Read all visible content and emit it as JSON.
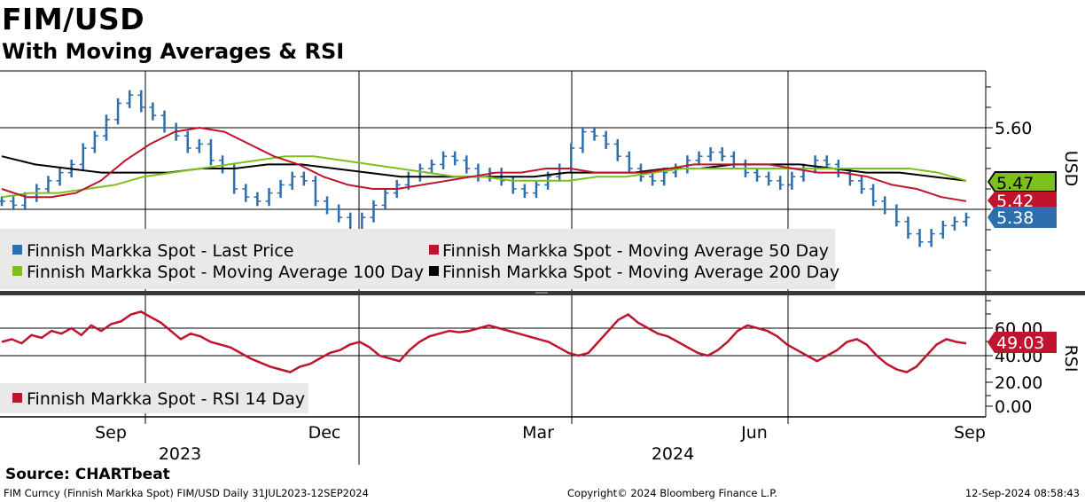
{
  "header": {
    "title": "FIM/USD",
    "subtitle": "With Moving Averages & RSI"
  },
  "footer": {
    "source": "Source: CHARTbeat",
    "ticker_info": "FIM Curncy (Finnish Markka Spot) FIM/USD  Daily 31JUL2023-12SEP2024",
    "copyright": "Copyright© 2024 Bloomberg Finance L.P.",
    "timestamp": "12-Sep-2024 08:58:43"
  },
  "colors": {
    "price": "#2e6eac",
    "ma50": "#c0142e",
    "ma100": "#7cc11a",
    "ma200": "#000000",
    "rsi": "#c0142e",
    "legend_bg": "#e9e9e9"
  },
  "chart_data": [
    {
      "type": "line",
      "title": "FIM/USD",
      "subtitle": "With Moving Averages & RSI",
      "x_tick_labels": [
        "Sep",
        "Dec",
        "Mar",
        "Jun",
        "Sep"
      ],
      "year_labels": [
        "2023",
        "2024"
      ],
      "y_tick_labels": [
        "5.60"
      ],
      "ylabel": "USD",
      "ylim": [
        5.18,
        5.75
      ],
      "grid": true,
      "legend_position": "bottom-left",
      "last_values": {
        "ma100": "5.47",
        "ma50": "5.42",
        "price": "5.38"
      },
      "series": [
        {
          "name": "Finnish Markka Spot - Last Price",
          "style": "ohlc-bars",
          "values": [
            5.42,
            5.41,
            5.43,
            5.45,
            5.47,
            5.49,
            5.51,
            5.55,
            5.58,
            5.62,
            5.66,
            5.68,
            5.65,
            5.63,
            5.6,
            5.58,
            5.55,
            5.56,
            5.52,
            5.5,
            5.45,
            5.43,
            5.42,
            5.44,
            5.46,
            5.48,
            5.47,
            5.42,
            5.4,
            5.38,
            5.35,
            5.38,
            5.41,
            5.44,
            5.46,
            5.48,
            5.5,
            5.51,
            5.53,
            5.52,
            5.5,
            5.48,
            5.49,
            5.47,
            5.45,
            5.44,
            5.46,
            5.48,
            5.5,
            5.55,
            5.59,
            5.58,
            5.56,
            5.53,
            5.5,
            5.48,
            5.47,
            5.49,
            5.5,
            5.52,
            5.53,
            5.54,
            5.53,
            5.51,
            5.49,
            5.48,
            5.47,
            5.46,
            5.48,
            5.5,
            5.52,
            5.51,
            5.49,
            5.47,
            5.45,
            5.42,
            5.4,
            5.37,
            5.34,
            5.32,
            5.34,
            5.36,
            5.37,
            5.38
          ]
        },
        {
          "name": "Finnish Markka Spot - Moving Average 50 Day",
          "values": [
            5.45,
            5.43,
            5.43,
            5.44,
            5.47,
            5.52,
            5.56,
            5.59,
            5.6,
            5.59,
            5.56,
            5.53,
            5.51,
            5.48,
            5.46,
            5.45,
            5.45,
            5.46,
            5.47,
            5.48,
            5.49,
            5.49,
            5.5,
            5.5,
            5.49,
            5.49,
            5.49,
            5.5,
            5.51,
            5.51,
            5.51,
            5.51,
            5.5,
            5.49,
            5.49,
            5.48,
            5.46,
            5.45,
            5.43,
            5.42
          ]
        },
        {
          "name": "Finnish Markka Spot - Moving Average 100 Day",
          "values": [
            5.43,
            5.44,
            5.44,
            5.45,
            5.46,
            5.48,
            5.49,
            5.5,
            5.51,
            5.52,
            5.53,
            5.53,
            5.52,
            5.51,
            5.5,
            5.49,
            5.48,
            5.48,
            5.47,
            5.47,
            5.47,
            5.48,
            5.48,
            5.49,
            5.5,
            5.5,
            5.5,
            5.5,
            5.5,
            5.5,
            5.5,
            5.5,
            5.5,
            5.49,
            5.47
          ]
        },
        {
          "name": "Finnish Markka Spot - Moving Average 200 Day",
          "values": [
            5.53,
            5.51,
            5.5,
            5.49,
            5.49,
            5.49,
            5.5,
            5.5,
            5.51,
            5.51,
            5.5,
            5.49,
            5.48,
            5.48,
            5.48,
            5.48,
            5.48,
            5.49,
            5.49,
            5.49,
            5.5,
            5.5,
            5.51,
            5.51,
            5.51,
            5.5,
            5.49,
            5.49,
            5.48,
            5.47
          ]
        }
      ]
    },
    {
      "type": "line",
      "ylabel": "RSI",
      "y_tick_labels": [
        "60.00",
        "40.00",
        "20.00",
        "0.00"
      ],
      "ylim": [
        -8,
        80
      ],
      "last_value_label": "49.03",
      "legend_position": "bottom-left",
      "series": [
        {
          "name": "Finnish Markka Spot - RSI 14 Day",
          "values": [
            50,
            52,
            49,
            55,
            53,
            58,
            56,
            60,
            55,
            62,
            58,
            63,
            65,
            70,
            72,
            68,
            64,
            58,
            52,
            56,
            54,
            50,
            48,
            46,
            42,
            38,
            35,
            32,
            30,
            28,
            32,
            34,
            38,
            42,
            44,
            48,
            50,
            46,
            40,
            38,
            36,
            44,
            50,
            54,
            56,
            58,
            57,
            58,
            60,
            62,
            60,
            58,
            56,
            54,
            52,
            50,
            46,
            42,
            40,
            42,
            50,
            58,
            66,
            70,
            64,
            60,
            56,
            54,
            50,
            46,
            42,
            40,
            44,
            50,
            58,
            62,
            60,
            58,
            54,
            48,
            44,
            40,
            36,
            40,
            44,
            50,
            52,
            48,
            40,
            34,
            30,
            28,
            32,
            40,
            48,
            52,
            50,
            49
          ]
        }
      ]
    }
  ],
  "legend": {
    "price": "Finnish Markka Spot - Last Price",
    "ma50": "Finnish Markka Spot - Moving Average 50 Day",
    "ma100": "Finnish Markka Spot - Moving Average 100 Day",
    "ma200": "Finnish Markka Spot - Moving Average 200 Day",
    "rsi": "Finnish Markka Spot - RSI 14 Day"
  }
}
